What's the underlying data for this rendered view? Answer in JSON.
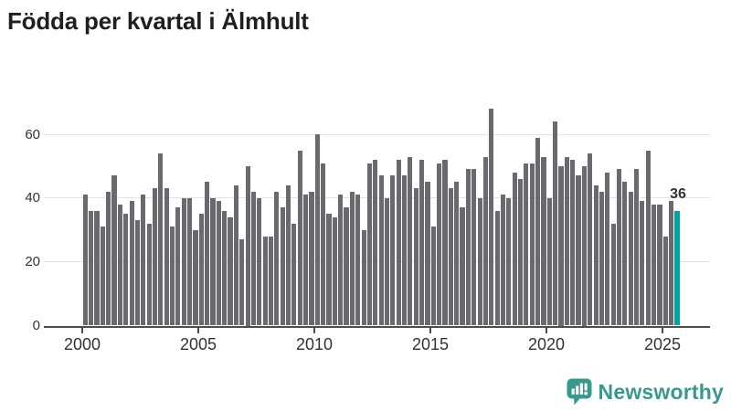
{
  "title": "Födda per kvartal i Älmhult",
  "chart_data": {
    "type": "bar",
    "title": "Födda per kvartal i Älmhult",
    "x_start": "2000-Q1",
    "x_end": "2025-Q3",
    "values": [
      41,
      36,
      36,
      31,
      42,
      47,
      38,
      35,
      39,
      33,
      41,
      32,
      43,
      54,
      43,
      31,
      37,
      40,
      40,
      30,
      35,
      45,
      40,
      39,
      36,
      34,
      44,
      27,
      50,
      42,
      40,
      28,
      28,
      42,
      37,
      44,
      32,
      55,
      41,
      42,
      60,
      51,
      35,
      34,
      41,
      37,
      42,
      41,
      30,
      51,
      52,
      47,
      40,
      47,
      52,
      47,
      53,
      43,
      52,
      45,
      31,
      51,
      52,
      43,
      45,
      37,
      49,
      49,
      40,
      53,
      68,
      36,
      41,
      40,
      48,
      46,
      51,
      51,
      59,
      53,
      40,
      64,
      50,
      53,
      52,
      47,
      50,
      54,
      44,
      42,
      48,
      32,
      49,
      45,
      42,
      49,
      39,
      55,
      38,
      38,
      28,
      39,
      36
    ],
    "highlight_last": true,
    "annotation": "36",
    "y_ticks": [
      0,
      20,
      40,
      60
    ],
    "x_tick_years": [
      2000,
      2005,
      2010,
      2015,
      2020,
      2025
    ],
    "ylim": [
      0,
      70
    ],
    "grid": true,
    "legend": "none",
    "bar_color": "#69696f",
    "highlight_color": "#00a3a0"
  },
  "branding": {
    "name": "Newsworthy",
    "color": "#38998e",
    "icon": "speech-bubble-bar-chart-icon"
  }
}
